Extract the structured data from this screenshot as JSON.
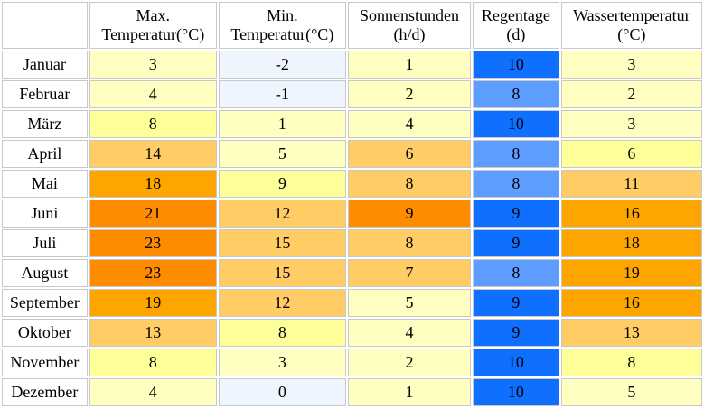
{
  "headers": [
    {
      "line1": "",
      "line2": ""
    },
    {
      "line1": "Max.",
      "line2": "Temperatur(°C)"
    },
    {
      "line1": "Min.",
      "line2": "Temperatur(°C)"
    },
    {
      "line1": "Sonnenstunden",
      "line2": "(h/d)"
    },
    {
      "line1": "Regentage",
      "line2": "(d)"
    },
    {
      "line1": "Wassertemperatur",
      "line2": "(°C)"
    }
  ],
  "rows": [
    {
      "month": "Januar",
      "max": "3",
      "min": "-2",
      "sun": "1",
      "rain": "10",
      "water": "3"
    },
    {
      "month": "Februar",
      "max": "4",
      "min": "-1",
      "sun": "2",
      "rain": "8",
      "water": "2"
    },
    {
      "month": "März",
      "max": "8",
      "min": "1",
      "sun": "4",
      "rain": "10",
      "water": "3"
    },
    {
      "month": "April",
      "max": "14",
      "min": "5",
      "sun": "6",
      "rain": "8",
      "water": "6"
    },
    {
      "month": "Mai",
      "max": "18",
      "min": "9",
      "sun": "8",
      "rain": "8",
      "water": "11"
    },
    {
      "month": "Juni",
      "max": "21",
      "min": "12",
      "sun": "9",
      "rain": "9",
      "water": "16"
    },
    {
      "month": "Juli",
      "max": "23",
      "min": "15",
      "sun": "8",
      "rain": "9",
      "water": "18"
    },
    {
      "month": "August",
      "max": "23",
      "min": "15",
      "sun": "7",
      "rain": "8",
      "water": "19"
    },
    {
      "month": "September",
      "max": "19",
      "min": "12",
      "sun": "5",
      "rain": "9",
      "water": "16"
    },
    {
      "month": "Oktober",
      "max": "13",
      "min": "8",
      "sun": "4",
      "rain": "9",
      "water": "13"
    },
    {
      "month": "November",
      "max": "8",
      "min": "3",
      "sun": "2",
      "rain": "10",
      "water": "8"
    },
    {
      "month": "Dezember",
      "max": "4",
      "min": "0",
      "sun": "1",
      "rain": "10",
      "water": "5"
    }
  ],
  "colors": {
    "cold": "#eef5fe",
    "pale": "#ffffc2",
    "yellow": "#ffff99",
    "light_orange": "#ffcc66",
    "orange": "#ffa500",
    "dark_orange": "#ff8c00",
    "rain_light": "#5c9dff",
    "rain_dark": "#0f70ff"
  }
}
